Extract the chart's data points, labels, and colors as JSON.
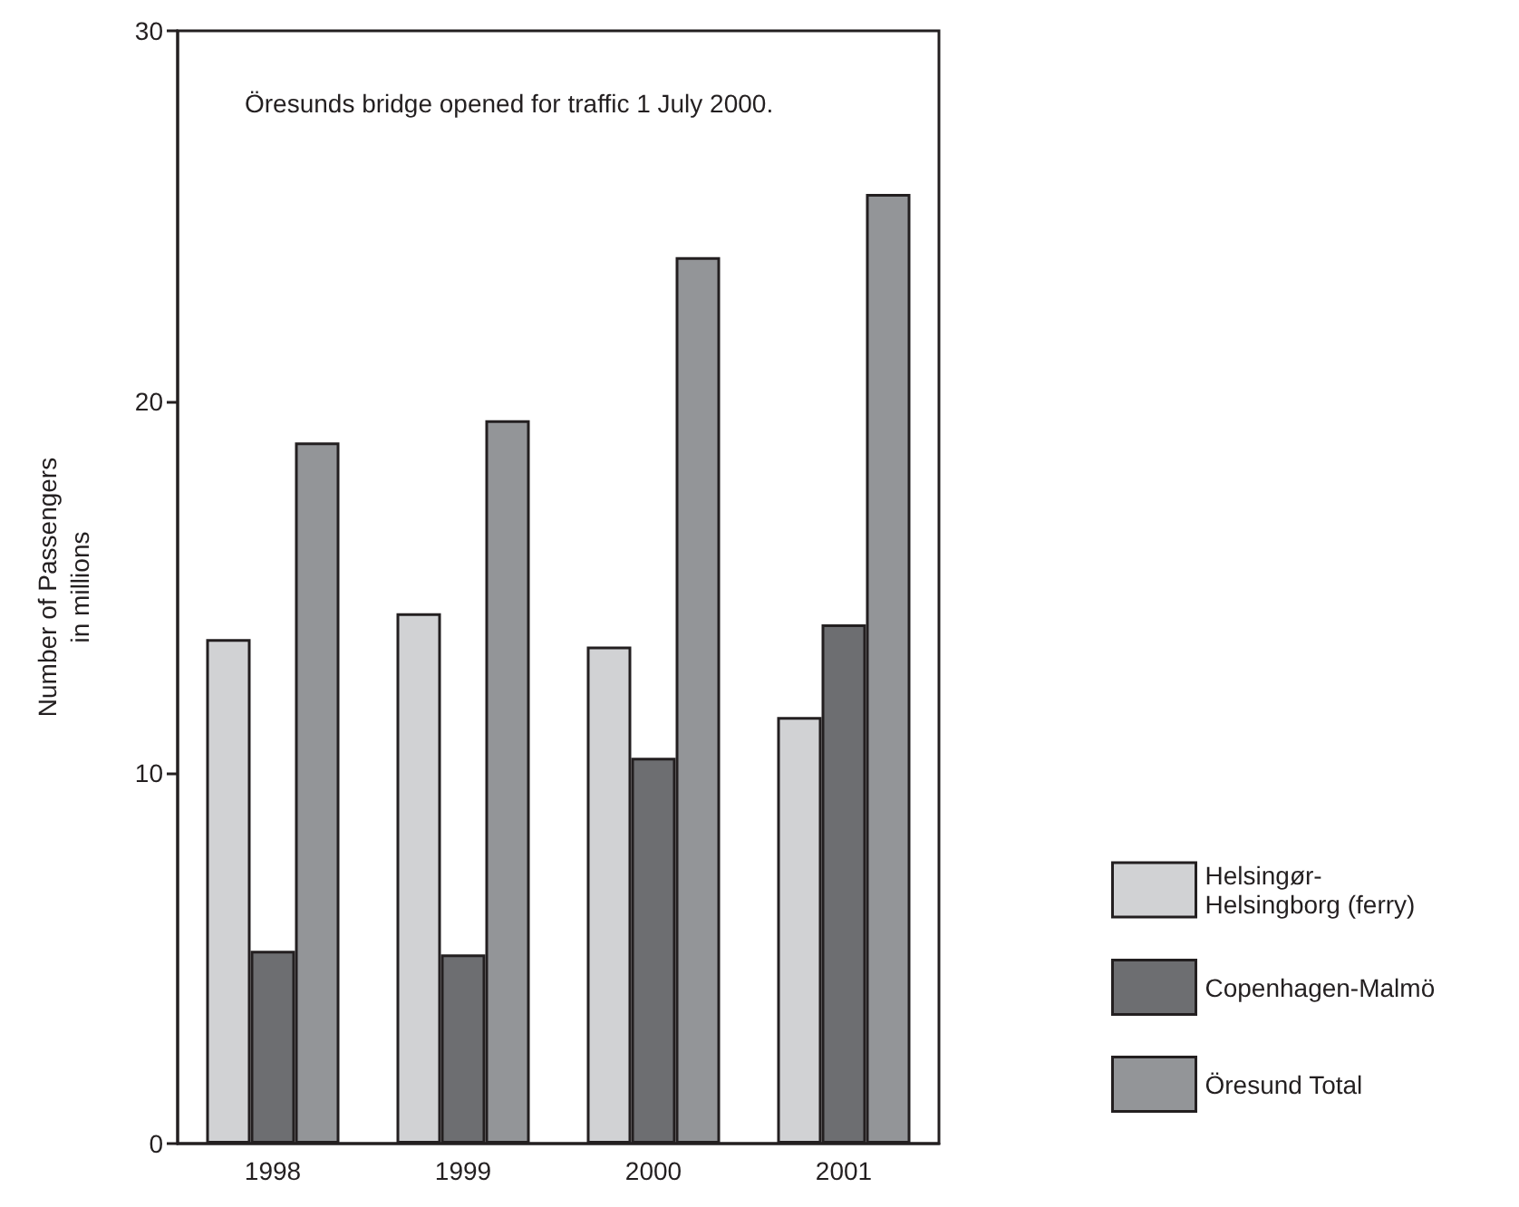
{
  "chart_data": {
    "type": "bar",
    "ylabel": "Number of Passengers\nin millions",
    "annotations": [
      "Öresunds bridge opened for traffic 1 July 2000."
    ],
    "categories": [
      "1998",
      "1999",
      "2000",
      "2001"
    ],
    "series": [
      {
        "name": "Helsingør-\nHelsingborg (ferry)",
        "color": "#d1d2d4",
        "values": [
          13.6,
          14.3,
          13.4,
          11.5
        ]
      },
      {
        "name": "Copenhagen-Malmö",
        "color": "#6d6e71",
        "values": [
          5.2,
          5.1,
          10.4,
          14.0
        ]
      },
      {
        "name": "Öresund Total",
        "color": "#939598",
        "values": [
          18.9,
          19.5,
          23.9,
          25.6
        ]
      }
    ],
    "ylim": [
      0,
      30
    ],
    "yticks": [
      0,
      10,
      20,
      30
    ],
    "grid": false,
    "legend": "right"
  }
}
